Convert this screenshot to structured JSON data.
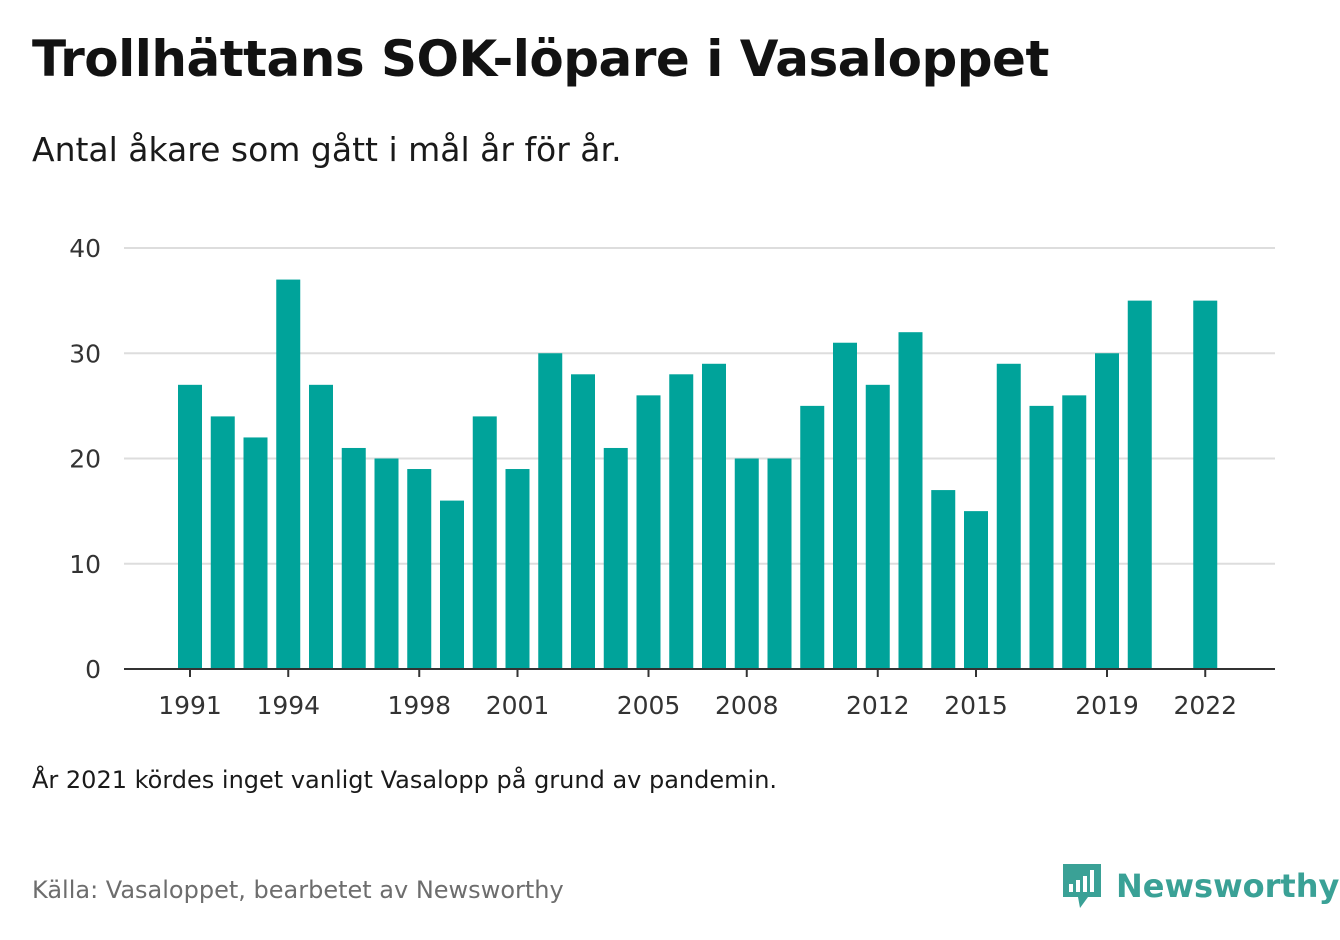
{
  "title": "Trollhättans SOK-löpare i Vasaloppet",
  "subtitle": "Antal åkare som gått i mål år för år.",
  "note": "År 2021 kördes inget vanligt Vasalopp på grund av pandemin.",
  "source": "Källa: Vasaloppet, bearbetet av Newsworthy",
  "brand": {
    "name": "Newsworthy",
    "icon": "newsworthy-logo-icon"
  },
  "colors": {
    "bar": "#00a39a",
    "grid": "#dddddd",
    "axis": "#333333",
    "brand": "#3aa196"
  },
  "chart_data": {
    "type": "bar",
    "categories": [
      "1991",
      "1992",
      "1993",
      "1994",
      "1995",
      "1996",
      "1997",
      "1998",
      "1999",
      "2000",
      "2001",
      "2002",
      "2003",
      "2004",
      "2005",
      "2006",
      "2007",
      "2008",
      "2009",
      "2010",
      "2011",
      "2012",
      "2013",
      "2014",
      "2015",
      "2016",
      "2017",
      "2018",
      "2019",
      "2020",
      "2021",
      "2022"
    ],
    "values": [
      27,
      24,
      22,
      37,
      27,
      21,
      20,
      19,
      16,
      24,
      19,
      30,
      28,
      21,
      26,
      28,
      29,
      20,
      20,
      25,
      31,
      27,
      32,
      17,
      15,
      29,
      25,
      26,
      30,
      35,
      null,
      35
    ],
    "x_tick_labels": [
      "1991",
      "1994",
      "1998",
      "2001",
      "2005",
      "2008",
      "2012",
      "2015",
      "2019",
      "2022"
    ],
    "y_ticks": [
      0,
      10,
      20,
      30,
      40
    ],
    "ylim": [
      0,
      40
    ],
    "grid": true,
    "legend": "none"
  }
}
